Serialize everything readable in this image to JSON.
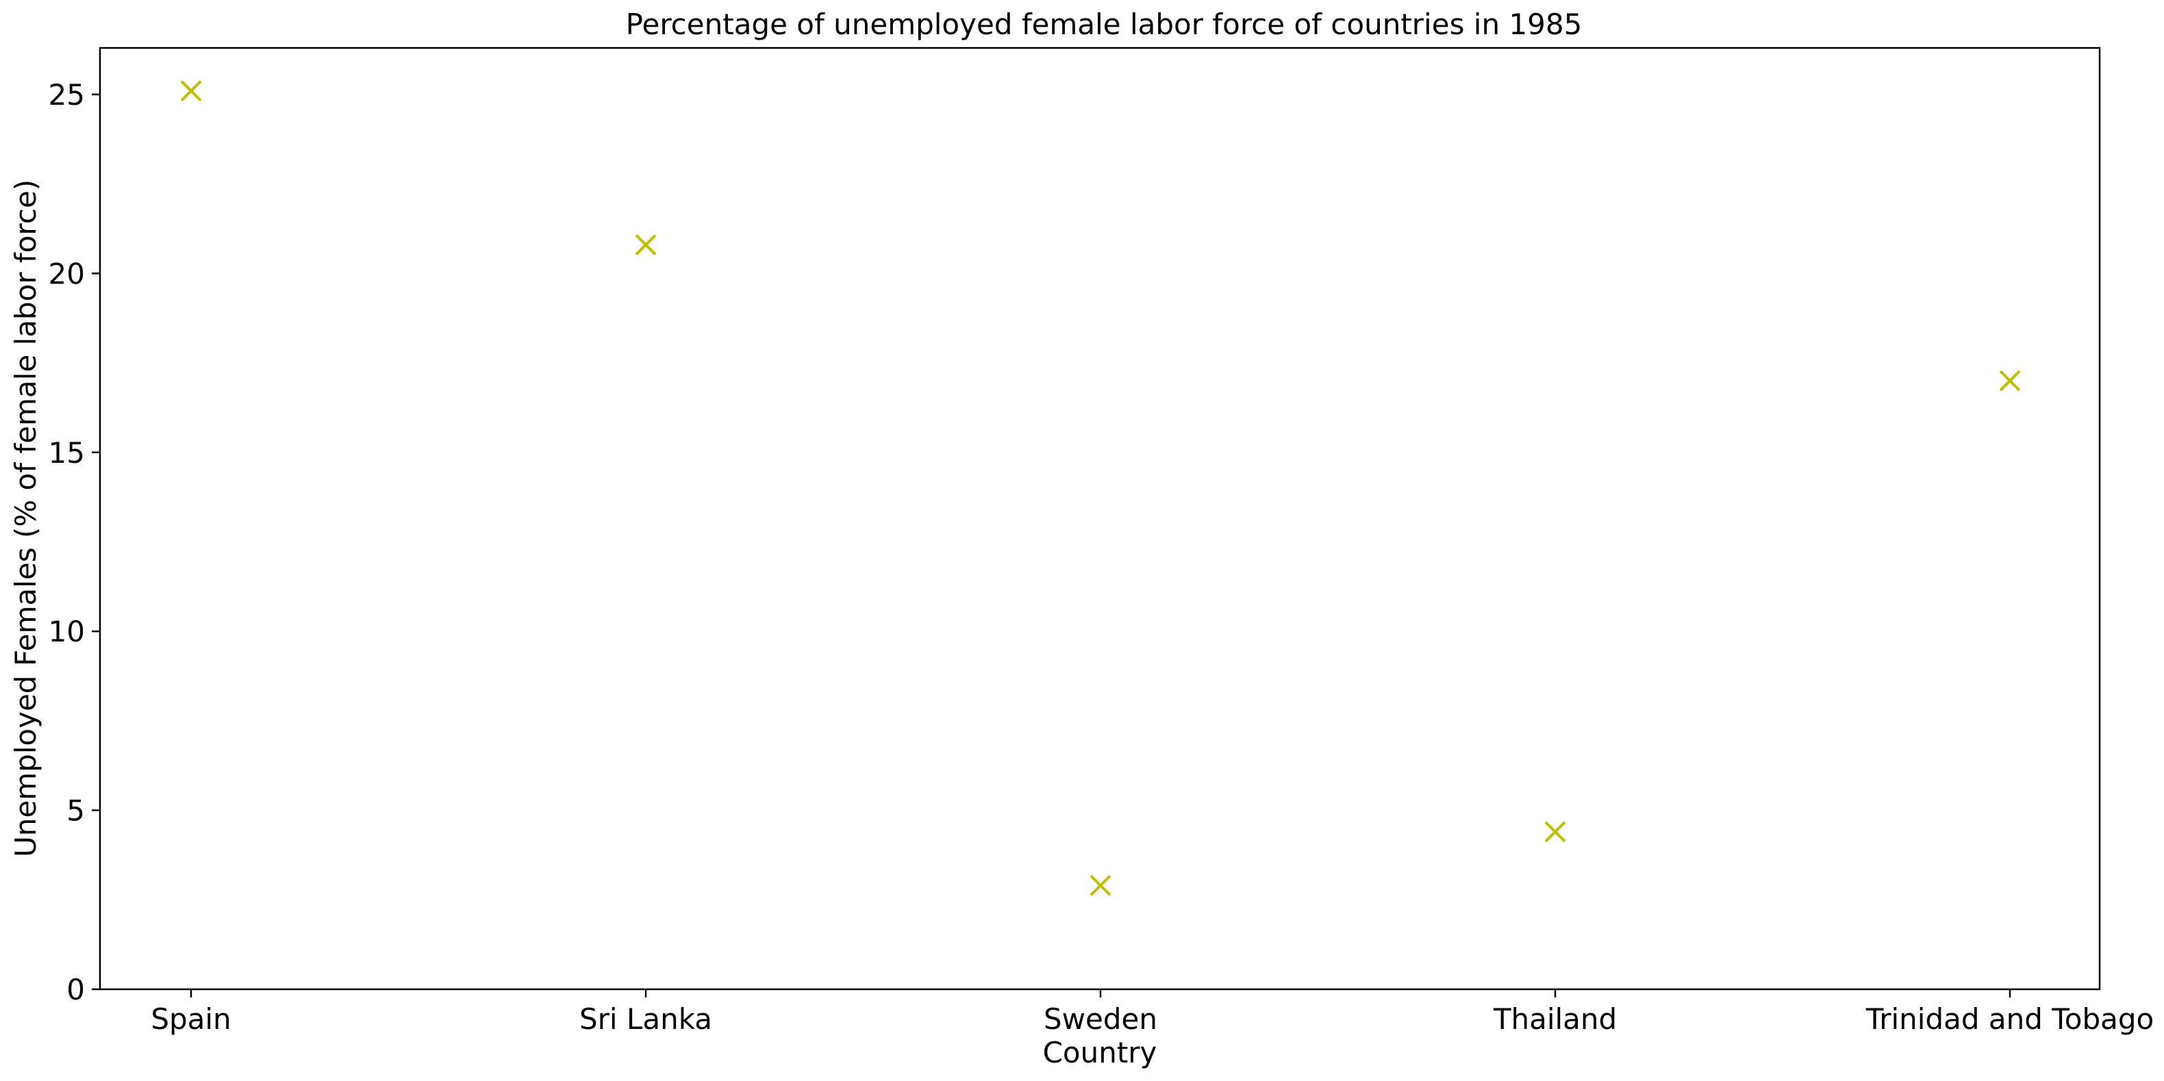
{
  "chart_data": {
    "type": "scatter",
    "title": "Percentage of unemployed female labor force of countries in 1985",
    "xlabel": "Country",
    "ylabel": "Unemployed Females (% of female labor force)",
    "categories": [
      "Spain",
      "Sri Lanka",
      "Sweden",
      "Thailand",
      "Trinidad and Tobago"
    ],
    "values": [
      25.1,
      20.8,
      2.9,
      4.4,
      17.0
    ],
    "marker": "x",
    "marker_color": "#bfbf00",
    "ylim": [
      0,
      26.3
    ],
    "yticks": [
      0,
      5,
      10,
      15,
      20,
      25
    ],
    "grid": false,
    "legend": "none"
  }
}
